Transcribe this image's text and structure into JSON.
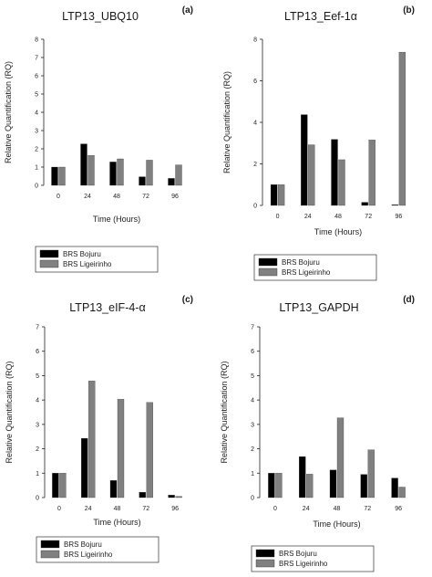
{
  "chart_data": [
    {
      "type": "bar",
      "panel_letter": "(a)",
      "title": "LTP13_UBQ10",
      "xlabel": "Time (Hours)",
      "ylabel": "Relative Quantification (RQ)",
      "categories": [
        "0",
        "24",
        "48",
        "72",
        "96"
      ],
      "ylim": [
        0,
        8
      ],
      "yticks": [
        "0",
        "1",
        "2",
        "3",
        "4",
        "5",
        "6",
        "7",
        "8"
      ],
      "series": [
        {
          "name": "BRS Bojuru",
          "color": "#000000",
          "values": [
            1.0,
            2.27,
            1.28,
            0.47,
            0.38
          ]
        },
        {
          "name": "BRS Ligeirinho",
          "color": "#808080",
          "values": [
            1.0,
            1.64,
            1.45,
            1.38,
            1.12
          ]
        }
      ],
      "legend_position": "below"
    },
    {
      "type": "bar",
      "panel_letter": "(b)",
      "title": "LTP13_Eef-1α",
      "xlabel": "Time (Hours)",
      "ylabel": "Relative Quantification (RQ)",
      "categories": [
        "0",
        "24",
        "48",
        "72",
        "96"
      ],
      "ylim": [
        0,
        8
      ],
      "yticks": [
        "0",
        "2",
        "4",
        "6",
        "8"
      ],
      "series": [
        {
          "name": "BRS Bojuru",
          "color": "#000000",
          "values": [
            1.0,
            4.37,
            3.18,
            0.15,
            0.03
          ]
        },
        {
          "name": "BRS Ligeirinho",
          "color": "#808080",
          "values": [
            1.0,
            2.92,
            2.2,
            3.15,
            7.38
          ]
        }
      ],
      "legend_position": "below"
    },
    {
      "type": "bar",
      "panel_letter": "(c)",
      "title": "LTP13_eIF-4-α",
      "xlabel": "Time (Hours)",
      "ylabel": "Relative Quantification (RQ)",
      "categories": [
        "0",
        "24",
        "48",
        "72",
        "96"
      ],
      "ylim": [
        0,
        7
      ],
      "yticks": [
        "0",
        "1",
        "2",
        "3",
        "4",
        "5",
        "6",
        "7"
      ],
      "series": [
        {
          "name": "BRS Bojuru",
          "color": "#000000",
          "values": [
            1.0,
            2.43,
            0.7,
            0.22,
            0.1
          ]
        },
        {
          "name": "BRS Ligeirinho",
          "color": "#808080",
          "values": [
            1.0,
            4.78,
            4.03,
            3.9,
            0.05
          ]
        }
      ],
      "legend_position": "below"
    },
    {
      "type": "bar",
      "panel_letter": "(d)",
      "title": "LTP13_GAPDH",
      "xlabel": "Time (Hours)",
      "ylabel": "Relative Quantification (RQ)",
      "categories": [
        "0",
        "24",
        "48",
        "72",
        "96"
      ],
      "ylim": [
        0,
        7
      ],
      "yticks": [
        "0",
        "1",
        "2",
        "3",
        "4",
        "5",
        "6",
        "7"
      ],
      "series": [
        {
          "name": "BRS Bojuru",
          "color": "#000000",
          "values": [
            1.0,
            1.68,
            1.13,
            0.95,
            0.8
          ]
        },
        {
          "name": "BRS Ligeirinho",
          "color": "#808080",
          "values": [
            1.0,
            0.96,
            3.27,
            1.96,
            0.43
          ]
        }
      ],
      "legend_position": "below"
    }
  ]
}
